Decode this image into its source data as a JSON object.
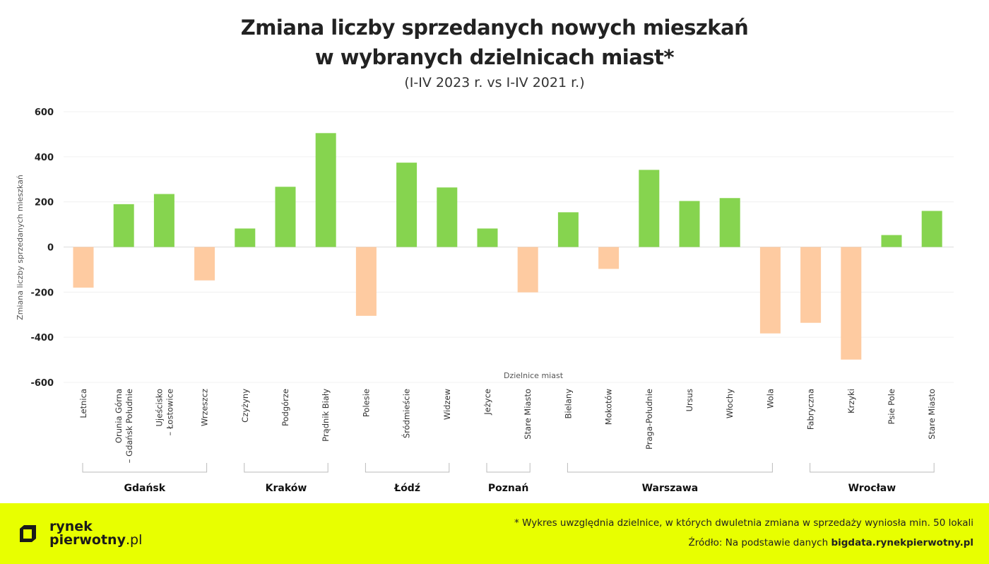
{
  "chart_data": {
    "type": "bar",
    "title": "Zmiana liczby sprzedanych nowych mieszkań w wybranych dzielnicach miast*",
    "title_lines": [
      "Zmiana liczby sprzedanych nowych mieszkań",
      "w wybranych dzielnicach miast*"
    ],
    "subtitle": "(I-IV 2023 r. vs I-IV 2021 r.)",
    "xlabel": "Dzielnice miast",
    "ylabel": "Zmiana liczby sprzedanych mieszkań",
    "ylim": [
      -600,
      600
    ],
    "yticks": [
      600,
      400,
      200,
      0,
      -200,
      -400,
      -600
    ],
    "grid": true,
    "colors": {
      "positive": "#86d44f",
      "negative": "#fecba1"
    },
    "categories": [
      "Letnica",
      "Orunia Górna\n– Gdańsk Południe",
      "Ujeścisko\n– Łostowice",
      "Wrzeszcz",
      "Czyżyny",
      "Podgórze",
      "Prądnik Biały",
      "Polesie",
      "Śródmieście",
      "Widzew",
      "Jeżyce",
      "Stare Miasto",
      "Bielany",
      "Mokotów",
      "Praga-Południe",
      "Ursus",
      "Włochy",
      "Wola",
      "Fabryczna",
      "Krzyki",
      "Psie Pole",
      "Stare Miasto"
    ],
    "values": [
      -180,
      190,
      235,
      -148,
      82,
      267,
      505,
      -305,
      374,
      264,
      82,
      -201,
      154,
      -97,
      342,
      204,
      217,
      -383,
      -336,
      -499,
      53,
      160
    ],
    "groups": [
      {
        "name": "Gdańsk",
        "from": 0,
        "to": 3
      },
      {
        "name": "Kraków",
        "from": 4,
        "to": 6
      },
      {
        "name": "Łódź",
        "from": 7,
        "to": 9
      },
      {
        "name": "Poznań",
        "from": 10,
        "to": 11
      },
      {
        "name": "Warszawa",
        "from": 12,
        "to": 17
      },
      {
        "name": "Wrocław",
        "from": 18,
        "to": 21
      }
    ]
  },
  "footer": {
    "logo_line1": "rynek",
    "logo_line2": "pierwotny",
    "logo_suffix": ".pl",
    "note": "* Wykres uwzględnia dzielnice, w których dwuletnia zmiana w sprzedaży wyniosła min. 50 lokali",
    "source_prefix": "Źródło: Na podstawie danych ",
    "source_bold": "bigdata.rynekpierwotny.pl"
  }
}
